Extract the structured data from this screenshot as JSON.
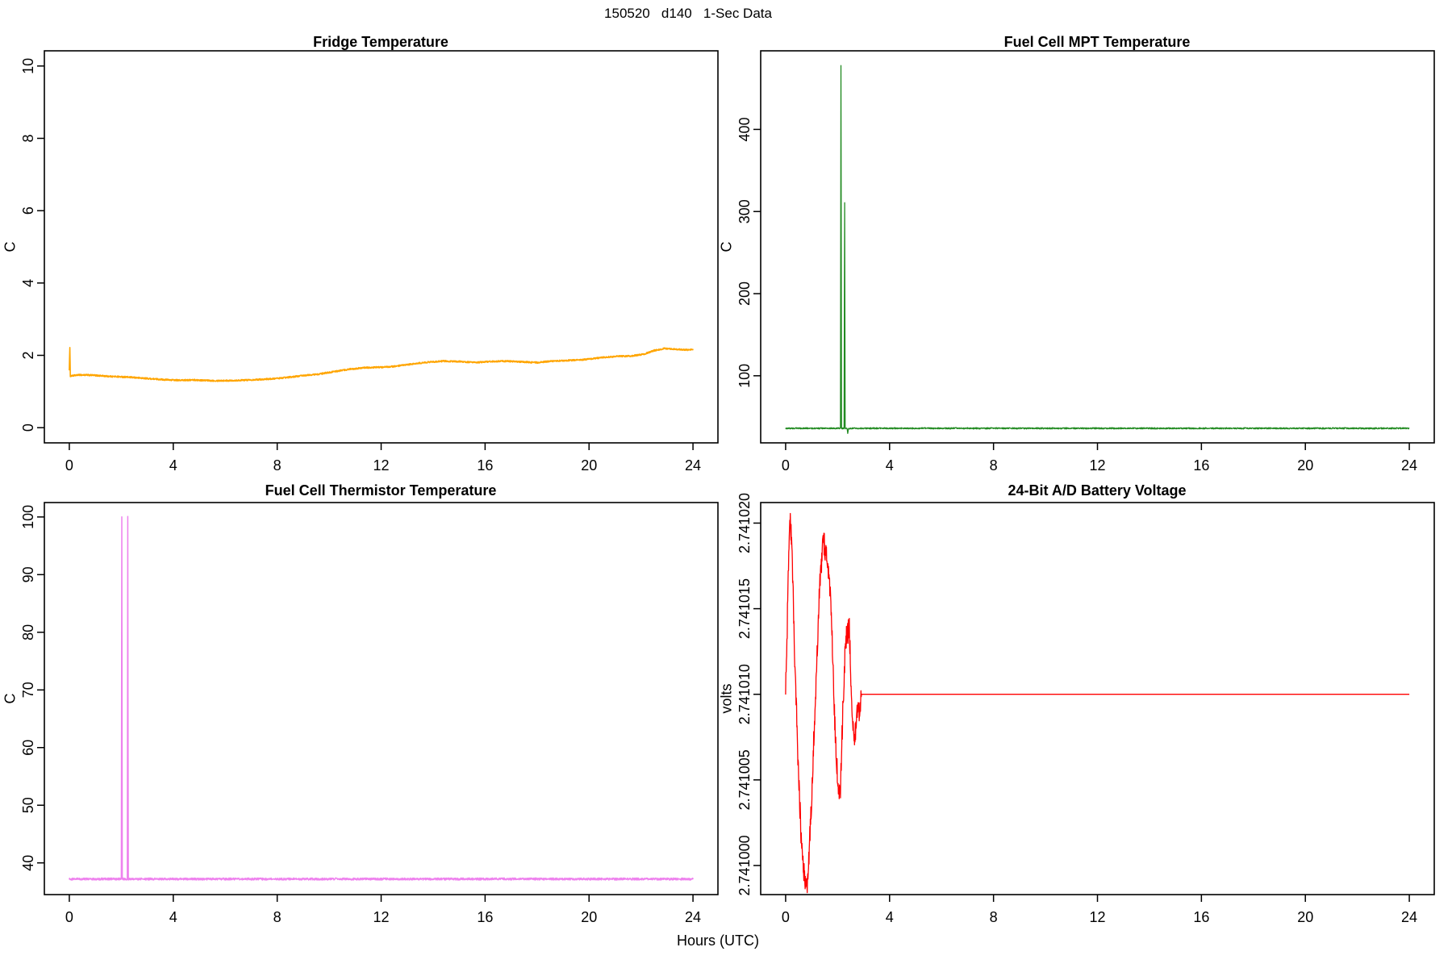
{
  "figure": {
    "title": "150520   d140   1-Sec Data",
    "xlabel": "Hours (UTC)",
    "background": "#FFFFFF",
    "axis_color": "#000000"
  },
  "chart_data": [
    {
      "type": "line",
      "title": "Fridge Temperature",
      "ylabel": "C",
      "color": "#FFA500",
      "xlim": [
        -0.96,
        24.96
      ],
      "ylim": [
        -0.42,
        10.42
      ],
      "xticks": [
        0,
        4,
        8,
        12,
        16,
        20,
        24
      ],
      "yticks": [
        0,
        2,
        4,
        6,
        8,
        10
      ],
      "grid": false,
      "legend": false,
      "noise_amp": 0.02,
      "noise_until": 24,
      "points": [
        [
          0,
          1.6
        ],
        [
          0.02,
          2.2
        ],
        [
          0.04,
          1.43
        ],
        [
          0.4,
          1.46
        ],
        [
          0.9,
          1.45
        ],
        [
          1.5,
          1.42
        ],
        [
          2.2,
          1.4
        ],
        [
          3,
          1.36
        ],
        [
          3.6,
          1.33
        ],
        [
          4.2,
          1.31
        ],
        [
          4.8,
          1.32
        ],
        [
          5.4,
          1.3
        ],
        [
          6,
          1.3
        ],
        [
          6.6,
          1.31
        ],
        [
          7.2,
          1.33
        ],
        [
          7.8,
          1.35
        ],
        [
          8.4,
          1.39
        ],
        [
          9,
          1.44
        ],
        [
          9.6,
          1.48
        ],
        [
          10.2,
          1.55
        ],
        [
          10.8,
          1.62
        ],
        [
          11.4,
          1.66
        ],
        [
          12,
          1.67
        ],
        [
          12.6,
          1.7
        ],
        [
          13.2,
          1.76
        ],
        [
          13.8,
          1.81
        ],
        [
          14.4,
          1.84
        ],
        [
          15,
          1.83
        ],
        [
          15.6,
          1.8
        ],
        [
          16.2,
          1.83
        ],
        [
          16.8,
          1.84
        ],
        [
          17.4,
          1.82
        ],
        [
          18,
          1.8
        ],
        [
          18.6,
          1.84
        ],
        [
          19.2,
          1.86
        ],
        [
          19.8,
          1.88
        ],
        [
          20.4,
          1.93
        ],
        [
          21,
          1.97
        ],
        [
          21.6,
          1.98
        ],
        [
          22.1,
          2.03
        ],
        [
          22.5,
          2.13
        ],
        [
          22.9,
          2.19
        ],
        [
          23.3,
          2.17
        ],
        [
          23.7,
          2.15
        ],
        [
          24,
          2.16
        ]
      ]
    },
    {
      "type": "line",
      "title": "Fuel Cell MPT Temperature",
      "ylabel": "C",
      "color": "#228B22",
      "xlim": [
        -0.96,
        24.96
      ],
      "ylim": [
        18.3,
        495.7
      ],
      "xticks": [
        0,
        4,
        8,
        12,
        16,
        20,
        24
      ],
      "yticks": [
        100,
        200,
        300,
        400
      ],
      "grid": false,
      "legend": false,
      "noise_amp": 0.8,
      "noise_until": 24,
      "points": [
        [
          0,
          36
        ],
        [
          2.11,
          36
        ],
        [
          2.13,
          478
        ],
        [
          2.15,
          36
        ],
        [
          2.25,
          36
        ],
        [
          2.27,
          310
        ],
        [
          2.29,
          36
        ],
        [
          2.36,
          36
        ],
        [
          2.39,
          30
        ],
        [
          2.42,
          36
        ],
        [
          24,
          36
        ]
      ]
    },
    {
      "type": "line",
      "title": "Fuel Cell Thermistor Temperature",
      "ylabel": "C",
      "color": "#EE82EE",
      "xlim": [
        -0.96,
        24.96
      ],
      "ylim": [
        34.5,
        102.5
      ],
      "xticks": [
        0,
        4,
        8,
        12,
        16,
        20,
        24
      ],
      "yticks": [
        40,
        50,
        60,
        70,
        80,
        90,
        100
      ],
      "grid": false,
      "legend": false,
      "noise_amp": 0.18,
      "noise_until": 24,
      "points": [
        [
          0,
          37.2
        ],
        [
          2.0,
          37.2
        ],
        [
          2.02,
          100
        ],
        [
          2.04,
          37.2
        ],
        [
          2.23,
          37.2
        ],
        [
          2.25,
          100
        ],
        [
          2.27,
          37.2
        ],
        [
          24,
          37.2
        ]
      ]
    },
    {
      "type": "line",
      "title": "24-Bit A/D Battery Voltage",
      "ylabel": "volts",
      "color": "#FF0000",
      "xlim": [
        -0.96,
        24.96
      ],
      "ylim": [
        2.7409983,
        2.7410212
      ],
      "xticks": [
        0,
        4,
        8,
        12,
        16,
        20,
        24
      ],
      "yticks": [
        2.741,
        2.741005,
        2.74101,
        2.741015,
        2.74102
      ],
      "ytick_labels": [
        "2.741000",
        "2.741005",
        "2.741010",
        "2.741015",
        "2.741020"
      ],
      "grid": false,
      "legend": false,
      "noise_amp": 7e-07,
      "noise_until": 2.9,
      "points": [
        [
          0,
          2.74101
        ],
        [
          0.05,
          2.741013
        ],
        [
          0.1,
          2.741017
        ],
        [
          0.17,
          2.7410205
        ],
        [
          0.25,
          2.741018
        ],
        [
          0.35,
          2.741012
        ],
        [
          0.5,
          2.741005
        ],
        [
          0.62,
          2.741001
        ],
        [
          0.75,
          2.740999
        ],
        [
          0.85,
          2.740999
        ],
        [
          1.0,
          2.741004
        ],
        [
          1.15,
          2.74101
        ],
        [
          1.3,
          2.741016
        ],
        [
          1.45,
          2.741019
        ],
        [
          1.6,
          2.741018
        ],
        [
          1.75,
          2.741015
        ],
        [
          1.9,
          2.741008
        ],
        [
          2.0,
          2.741005
        ],
        [
          2.1,
          2.741004
        ],
        [
          2.2,
          2.741009
        ],
        [
          2.3,
          2.741013
        ],
        [
          2.45,
          2.741014
        ],
        [
          2.55,
          2.741009
        ],
        [
          2.65,
          2.741007
        ],
        [
          2.75,
          2.741009
        ],
        [
          2.85,
          2.741009
        ],
        [
          2.92,
          2.74101
        ],
        [
          24,
          2.74101
        ]
      ]
    }
  ]
}
